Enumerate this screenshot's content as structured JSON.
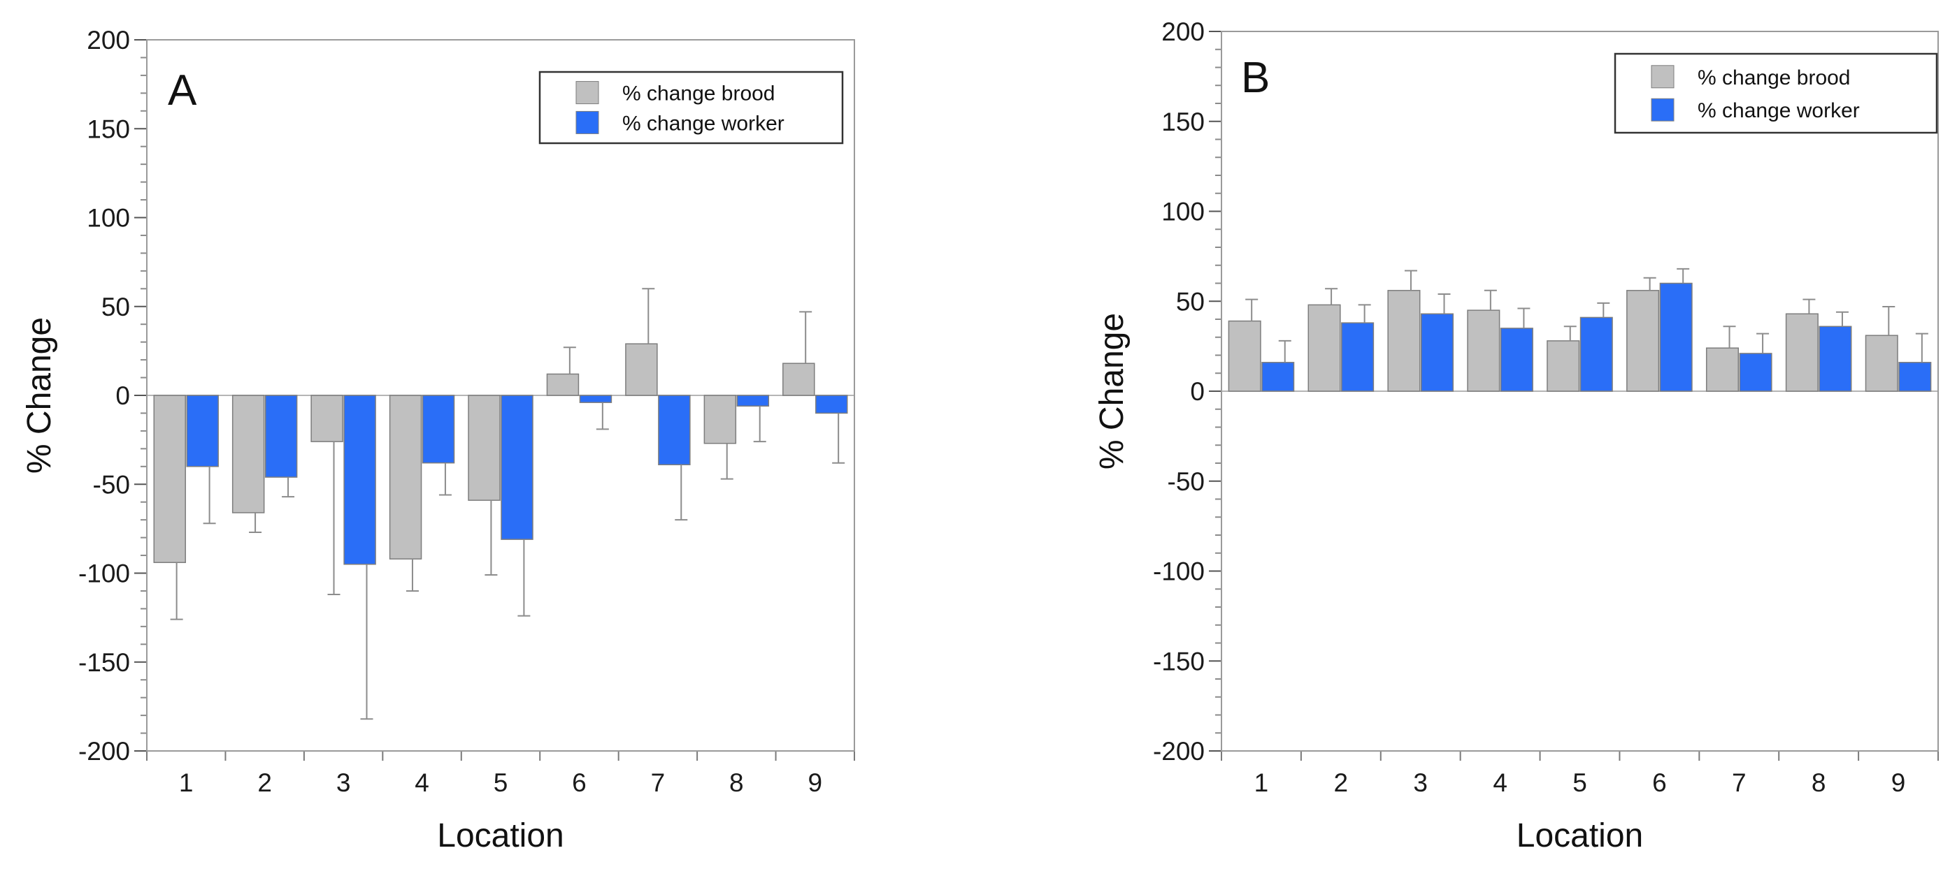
{
  "chart_data": [
    {
      "type": "bar",
      "panel_label": "A",
      "title": "",
      "xlabel": "Location",
      "ylabel": "% Change",
      "ylim": [
        -200,
        200
      ],
      "yticks": [
        -200,
        -150,
        -100,
        -50,
        0,
        50,
        100,
        150,
        200
      ],
      "categories": [
        "1",
        "2",
        "3",
        "4",
        "5",
        "6",
        "7",
        "8",
        "9"
      ],
      "legend_position": "top-right",
      "series": [
        {
          "name": "% change brood",
          "color": "#c0c0c0",
          "values": [
            -94,
            -66,
            -26,
            -92,
            -59,
            12,
            29,
            -27,
            18
          ],
          "errors": [
            32,
            11,
            86,
            18,
            42,
            15,
            31,
            20,
            29
          ]
        },
        {
          "name": "% change worker",
          "color": "#2a6ef7",
          "values": [
            -40,
            -46,
            -95,
            -38,
            -81,
            -4,
            -39,
            -6,
            -10
          ],
          "errors": [
            32,
            11,
            87,
            18,
            43,
            15,
            31,
            20,
            28
          ]
        }
      ]
    },
    {
      "type": "bar",
      "panel_label": "B",
      "title": "",
      "xlabel": "Location",
      "ylabel": "% Change",
      "ylim": [
        -200,
        200
      ],
      "yticks": [
        -200,
        -150,
        -100,
        -50,
        0,
        50,
        100,
        150,
        200
      ],
      "categories": [
        "1",
        "2",
        "3",
        "4",
        "5",
        "6",
        "7",
        "8",
        "9"
      ],
      "legend_position": "top-right",
      "series": [
        {
          "name": "% change brood",
          "color": "#c0c0c0",
          "values": [
            39,
            48,
            56,
            45,
            28,
            56,
            24,
            43,
            31
          ],
          "errors": [
            12,
            9,
            11,
            11,
            8,
            7,
            12,
            8,
            16
          ]
        },
        {
          "name": "% change worker",
          "color": "#2a6ef7",
          "values": [
            16,
            38,
            43,
            35,
            41,
            60,
            21,
            36,
            16
          ],
          "errors": [
            12,
            10,
            11,
            11,
            8,
            8,
            11,
            8,
            16
          ]
        }
      ]
    }
  ]
}
